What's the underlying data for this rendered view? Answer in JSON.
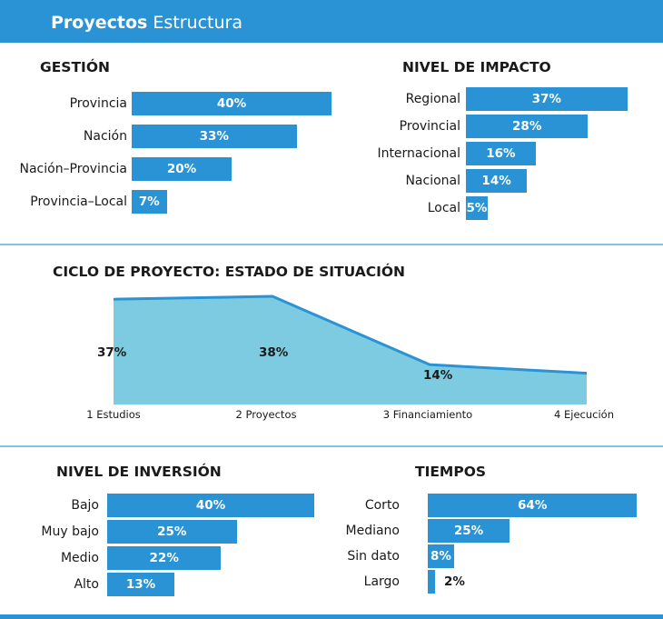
{
  "header": {
    "title_bold": "Proyectos",
    "title_rest": "Estructura"
  },
  "colors": {
    "bar": "#2a93d5",
    "area_fill": "#7ccbe0",
    "area_line": "#2a93d5",
    "divider": "#7fc3e8"
  },
  "chart_data": [
    {
      "type": "bar",
      "orientation": "horizontal",
      "title": "GESTIÓN",
      "categories": [
        "Provincia",
        "Nación",
        "Nación–Provincia",
        "Provincia–Local"
      ],
      "values": [
        40,
        33,
        20,
        7
      ],
      "labels": [
        "40%",
        "33%",
        "20%",
        "7%"
      ],
      "unit": "%"
    },
    {
      "type": "bar",
      "orientation": "horizontal",
      "title": "NIVEL DE IMPACTO",
      "categories": [
        "Regional",
        "Provincial",
        "Internacional",
        "Nacional",
        "Local"
      ],
      "values": [
        37,
        28,
        16,
        14,
        5
      ],
      "labels": [
        "37%",
        "28%",
        "16%",
        "14%",
        "5%"
      ],
      "unit": "%"
    },
    {
      "type": "area",
      "title": "CICLO DE PROYECTO: ESTADO DE SITUACIÓN",
      "categories": [
        "1 Estudios",
        "2 Proyectos",
        "3 Financiamiento",
        "4 Ejecución"
      ],
      "values": [
        37,
        38,
        14,
        11
      ],
      "labels": [
        "37%",
        "38%",
        "14%",
        ""
      ],
      "unit": "%"
    },
    {
      "type": "bar",
      "orientation": "horizontal",
      "title": "NIVEL DE INVERSIÓN",
      "categories": [
        "Bajo",
        "Muy bajo",
        "Medio",
        "Alto"
      ],
      "values": [
        40,
        25,
        22,
        13
      ],
      "labels": [
        "40%",
        "25%",
        "22%",
        "13%"
      ],
      "unit": "%"
    },
    {
      "type": "bar",
      "orientation": "horizontal",
      "title": "TIEMPOS",
      "categories": [
        "Corto",
        "Mediano",
        "Sin dato",
        "Largo"
      ],
      "values": [
        64,
        25,
        8,
        2
      ],
      "labels": [
        "64%",
        "25%",
        "8%",
        "2%"
      ],
      "unit": "%"
    }
  ]
}
